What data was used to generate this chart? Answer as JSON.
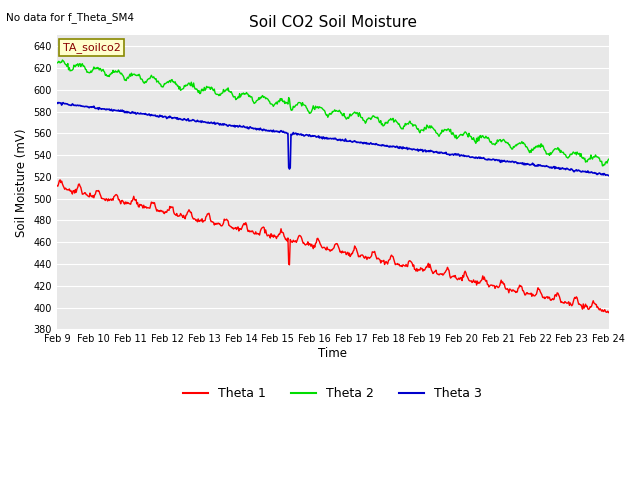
{
  "title": "Soil CO2 Soil Moisture",
  "no_data_text": "No data for f_Theta_SM4",
  "ylabel": "Soil Moisture (mV)",
  "xlabel": "Time",
  "ylim": [
    380,
    650
  ],
  "yticks": [
    380,
    400,
    420,
    440,
    460,
    480,
    500,
    520,
    540,
    560,
    580,
    600,
    620,
    640
  ],
  "xtick_labels": [
    "Feb 9",
    "Feb 10",
    "Feb 11",
    "Feb 12",
    "Feb 13",
    "Feb 14",
    "Feb 15",
    "Feb 16",
    "Feb 17",
    "Feb 18",
    "Feb 19",
    "Feb 20",
    "Feb 21",
    "Feb 22",
    "Feb 23",
    "Feb 24"
  ],
  "legend_label": "TA_soilco2",
  "bg_color": "#e8e8e8",
  "line_colors": {
    "theta1": "#ff0000",
    "theta2": "#00dd00",
    "theta3": "#0000cc"
  },
  "legend_entries": [
    "Theta 1",
    "Theta 2",
    "Theta 3"
  ]
}
